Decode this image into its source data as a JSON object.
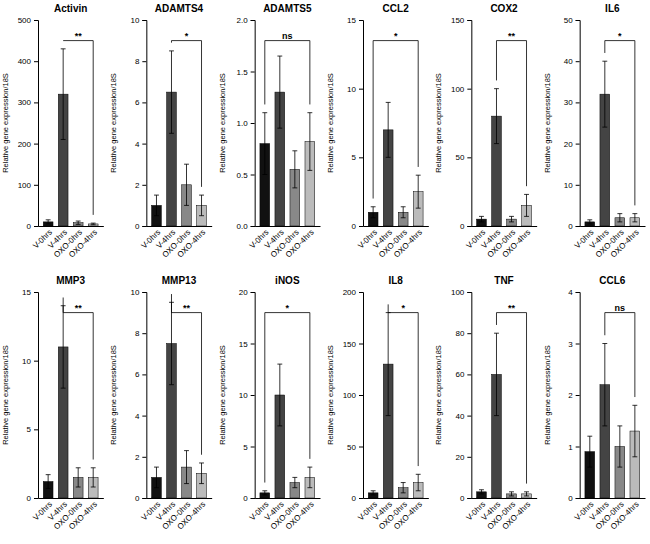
{
  "chart_data": [
    {
      "type": "bar",
      "title": "Activin",
      "ylabel": "Relative gene expression/18S",
      "categories": [
        "V-0hrs",
        "V-4hrs",
        "OXO-0hrs",
        "OXO-4hrs"
      ],
      "values": [
        10,
        320,
        8,
        5
      ],
      "errors": [
        5,
        110,
        4,
        2
      ],
      "colors": [
        "#111111",
        "#444444",
        "#888888",
        "#bbbbbb"
      ],
      "ylim": [
        0,
        500
      ],
      "yticks": [
        0,
        100,
        200,
        300,
        400,
        500
      ],
      "annotations": [
        {
          "text": "**",
          "from": "V-4hrs",
          "to": "OXO-4hrs"
        }
      ]
    },
    {
      "type": "bar",
      "title": "ADAMTS4",
      "ylabel": "Relative gene expression/18S",
      "categories": [
        "V-0hrs",
        "V-4hrs",
        "OXO-0hrs",
        "OXO-4hrs"
      ],
      "values": [
        1.0,
        6.5,
        2.0,
        1.0
      ],
      "errors": [
        0.5,
        2.0,
        1.0,
        0.5
      ],
      "colors": [
        "#111111",
        "#444444",
        "#888888",
        "#bbbbbb"
      ],
      "ylim": [
        0,
        10
      ],
      "yticks": [
        0,
        2,
        4,
        6,
        8,
        10
      ],
      "annotations": [
        {
          "text": "*",
          "from": "V-4hrs",
          "to": "OXO-4hrs"
        }
      ]
    },
    {
      "type": "bar",
      "title": "ADAMTS5",
      "ylabel": "Relative gene expression/18S",
      "categories": [
        "V-0hrs",
        "V-4hrs",
        "OXO-0hrs",
        "OXO-4hrs"
      ],
      "values": [
        0.8,
        1.3,
        0.55,
        0.82
      ],
      "errors": [
        0.3,
        0.35,
        0.18,
        0.28
      ],
      "colors": [
        "#111111",
        "#444444",
        "#888888",
        "#bbbbbb"
      ],
      "ylim": [
        0,
        2.0
      ],
      "yticks": [
        {
          "value": 0,
          "label": "0.0"
        },
        0.5,
        {
          "value": 1,
          "label": "1.0"
        },
        1.5,
        {
          "value": 2,
          "label": "2.0"
        }
      ],
      "annotations": [
        {
          "text": "ns",
          "from": "V-0hrs",
          "to": "OXO-4hrs"
        }
      ]
    },
    {
      "type": "bar",
      "title": "CCL2",
      "ylabel": "Relative gene expression/18S",
      "categories": [
        "V-0hrs",
        "V-4hrs",
        "OXO-0hrs",
        "OXO-4hrs"
      ],
      "values": [
        1.0,
        7.0,
        1.0,
        2.5
      ],
      "errors": [
        0.4,
        2.0,
        0.4,
        1.2
      ],
      "colors": [
        "#111111",
        "#444444",
        "#888888",
        "#bbbbbb"
      ],
      "ylim": [
        0,
        15
      ],
      "yticks": [
        0,
        5,
        10,
        15
      ],
      "annotations": [
        {
          "text": "*",
          "from": "V-0hrs",
          "to": "OXO-4hrs"
        }
      ]
    },
    {
      "type": "bar",
      "title": "COX2",
      "ylabel": "Relative gene expression/18S",
      "categories": [
        "V-0hrs",
        "V-4hrs",
        "OXO-0hrs",
        "OXO-4hrs"
      ],
      "values": [
        5,
        80,
        5,
        15
      ],
      "errors": [
        2,
        20,
        2,
        8
      ],
      "colors": [
        "#111111",
        "#444444",
        "#888888",
        "#bbbbbb"
      ],
      "ylim": [
        0,
        150
      ],
      "yticks": [
        0,
        50,
        100,
        150
      ],
      "annotations": [
        {
          "text": "**",
          "from": "V-4hrs",
          "to": "OXO-4hrs"
        }
      ]
    },
    {
      "type": "bar",
      "title": "IL6",
      "ylabel": "Relative gene expression/18S",
      "categories": [
        "V-0hrs",
        "V-4hrs",
        "OXO-0hrs",
        "OXO-4hrs"
      ],
      "values": [
        1,
        32,
        2,
        2
      ],
      "errors": [
        0.5,
        8,
        1,
        1
      ],
      "colors": [
        "#111111",
        "#444444",
        "#888888",
        "#bbbbbb"
      ],
      "ylim": [
        0,
        50
      ],
      "yticks": [
        0,
        10,
        20,
        30,
        40,
        50
      ],
      "annotations": [
        {
          "text": "*",
          "from": "V-4hrs",
          "to": "OXO-4hrs"
        }
      ]
    },
    {
      "type": "bar",
      "title": "MMP3",
      "ylabel": "Relative gene expression/18S",
      "categories": [
        "V-0hrs",
        "V-4hrs",
        "OXO-0hrs",
        "OXO-4hrs"
      ],
      "values": [
        1.2,
        11,
        1.5,
        1.5
      ],
      "errors": [
        0.5,
        3,
        0.7,
        0.7
      ],
      "colors": [
        "#111111",
        "#444444",
        "#888888",
        "#bbbbbb"
      ],
      "ylim": [
        0,
        15
      ],
      "yticks": [
        0,
        5,
        10,
        15
      ],
      "annotations": [
        {
          "text": "**",
          "from": "V-4hrs",
          "to": "OXO-4hrs"
        }
      ]
    },
    {
      "type": "bar",
      "title": "MMP13",
      "ylabel": "Relative gene expression/18S",
      "categories": [
        "V-0hrs",
        "V-4hrs",
        "OXO-0hrs",
        "OXO-4hrs"
      ],
      "values": [
        1.0,
        7.5,
        1.5,
        1.2
      ],
      "errors": [
        0.5,
        2.0,
        0.8,
        0.5
      ],
      "colors": [
        "#111111",
        "#444444",
        "#888888",
        "#bbbbbb"
      ],
      "ylim": [
        0,
        10
      ],
      "yticks": [
        0,
        2,
        4,
        6,
        8,
        10
      ],
      "annotations": [
        {
          "text": "**",
          "from": "V-4hrs",
          "to": "OXO-4hrs"
        }
      ]
    },
    {
      "type": "bar",
      "title": "iNOS",
      "ylabel": "Relative gene expression/18S",
      "categories": [
        "V-0hrs",
        "V-4hrs",
        "OXO-0hrs",
        "OXO-4hrs"
      ],
      "values": [
        0.5,
        10,
        1.5,
        2.0
      ],
      "errors": [
        0.2,
        3,
        0.5,
        1.0
      ],
      "colors": [
        "#111111",
        "#444444",
        "#888888",
        "#bbbbbb"
      ],
      "ylim": [
        0,
        20
      ],
      "yticks": [
        0,
        5,
        10,
        15,
        20
      ],
      "annotations": [
        {
          "text": "*",
          "from": "V-0hrs",
          "to": "OXO-4hrs"
        }
      ]
    },
    {
      "type": "bar",
      "title": "IL8",
      "ylabel": "Relative gene expression/18S",
      "categories": [
        "V-0hrs",
        "V-4hrs",
        "OXO-0hrs",
        "OXO-4hrs"
      ],
      "values": [
        5,
        130,
        10,
        15
      ],
      "errors": [
        2,
        50,
        5,
        8
      ],
      "colors": [
        "#111111",
        "#444444",
        "#888888",
        "#bbbbbb"
      ],
      "ylim": [
        0,
        200
      ],
      "yticks": [
        0,
        50,
        100,
        150,
        200
      ],
      "annotations": [
        {
          "text": "*",
          "from": "V-4hrs",
          "to": "OXO-4hrs"
        }
      ]
    },
    {
      "type": "bar",
      "title": "TNF",
      "ylabel": "Relative gene expression/18S",
      "categories": [
        "V-0hrs",
        "V-4hrs",
        "OXO-0hrs",
        "OXO-4hrs"
      ],
      "values": [
        3,
        60,
        2,
        2
      ],
      "errors": [
        1,
        20,
        1,
        1
      ],
      "colors": [
        "#111111",
        "#444444",
        "#888888",
        "#bbbbbb"
      ],
      "ylim": [
        0,
        100
      ],
      "yticks": [
        0,
        20,
        40,
        60,
        80,
        100
      ],
      "annotations": [
        {
          "text": "**",
          "from": "V-4hrs",
          "to": "OXO-4hrs"
        }
      ]
    },
    {
      "type": "bar",
      "title": "CCL6",
      "ylabel": "Relative gene expression/18S",
      "categories": [
        "V-0hrs",
        "V-4hrs",
        "OXO-0hrs",
        "OXO-4hrs"
      ],
      "values": [
        0.9,
        2.2,
        1.0,
        1.3
      ],
      "errors": [
        0.3,
        0.8,
        0.4,
        0.5
      ],
      "colors": [
        "#111111",
        "#444444",
        "#888888",
        "#bbbbbb"
      ],
      "ylim": [
        0,
        4
      ],
      "yticks": [
        0,
        1,
        2,
        3,
        4
      ],
      "annotations": [
        {
          "text": "ns",
          "from": "V-4hrs",
          "to": "OXO-4hrs"
        }
      ]
    }
  ]
}
